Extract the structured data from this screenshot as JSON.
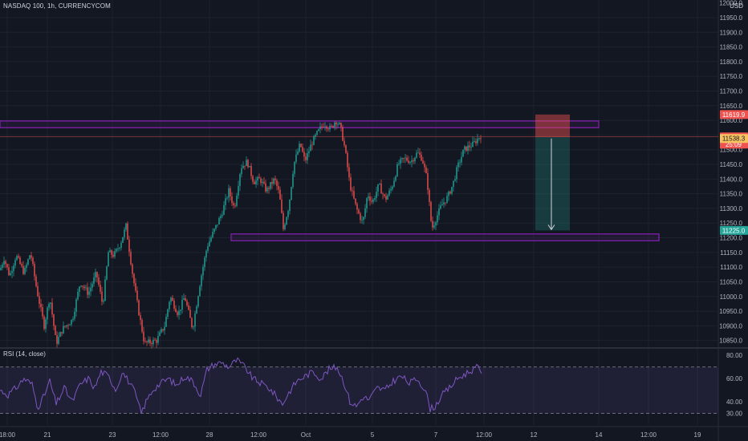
{
  "header": {
    "symbol_title": "NASDAQ 100, 1h, CURRENCYCOM",
    "currency": "USD"
  },
  "rsi": {
    "title": "RSI (14, close)"
  },
  "colors": {
    "background": "#131722",
    "up": "#26a69a",
    "down": "#ef5350",
    "rsi_line": "#7e57c2",
    "zone_border": "#7b1fa2",
    "grid": "#1e222d"
  },
  "chart_data": [
    {
      "type": "candlestick",
      "title": "NASDAQ 100, 1h, CURRENCYCOM",
      "ylim": [
        10830,
        12010
      ],
      "y_ticks": [
        10850,
        10900,
        10950,
        11000,
        11050,
        11100,
        11150,
        11200,
        11250,
        11300,
        11350,
        11400,
        11450,
        11500,
        11550,
        11600,
        11650,
        11700,
        11750,
        11800,
        11850,
        11900,
        11950
      ],
      "y_tick_labels": [
        "10850.0",
        "10900.0",
        "10950.0",
        "11000.0",
        "11050.0",
        "11100.0",
        "11150.0",
        "11200.0",
        "11250.0",
        "11300.0",
        "11350.0",
        "11400.0",
        "11450.0",
        "11500.0",
        "11550.0",
        "11600.0",
        "11650.0",
        "11700.0",
        "11750.0",
        "11800.0",
        "11850.0",
        "11900.0",
        "11950.0"
      ],
      "top_cut_label": "12000.0",
      "x_ticks": [
        "18:00",
        "21",
        "23",
        "12:00",
        "28",
        "12:00",
        "Oct",
        "5",
        "7",
        "12:00",
        "12",
        "14",
        "12:00",
        "19"
      ],
      "price_path": [
        [
          0,
          11090
        ],
        [
          5,
          11130
        ],
        [
          12,
          11070
        ],
        [
          20,
          11140
        ],
        [
          30,
          11080
        ],
        [
          38,
          11150
        ],
        [
          46,
          11020
        ],
        [
          55,
          10900
        ],
        [
          62,
          11000
        ],
        [
          70,
          10840
        ],
        [
          78,
          10890
        ],
        [
          90,
          10920
        ],
        [
          100,
          11050
        ],
        [
          110,
          11010
        ],
        [
          120,
          11080
        ],
        [
          128,
          10970
        ],
        [
          135,
          11150
        ],
        [
          142,
          11140
        ],
        [
          150,
          11180
        ],
        [
          157,
          11240
        ],
        [
          165,
          11080
        ],
        [
          172,
          10960
        ],
        [
          180,
          10840
        ],
        [
          195,
          10850
        ],
        [
          205,
          10900
        ],
        [
          212,
          11000
        ],
        [
          222,
          10940
        ],
        [
          230,
          11000
        ],
        [
          240,
          10890
        ],
        [
          250,
          11060
        ],
        [
          258,
          11170
        ],
        [
          266,
          11220
        ],
        [
          276,
          11280
        ],
        [
          285,
          11360
        ],
        [
          292,
          11300
        ],
        [
          300,
          11440
        ],
        [
          308,
          11460
        ],
        [
          316,
          11390
        ],
        [
          324,
          11400
        ],
        [
          332,
          11360
        ],
        [
          342,
          11400
        ],
        [
          348,
          11350
        ],
        [
          353,
          11230
        ],
        [
          360,
          11310
        ],
        [
          366,
          11450
        ],
        [
          374,
          11520
        ],
        [
          380,
          11460
        ],
        [
          388,
          11520
        ],
        [
          396,
          11560
        ],
        [
          404,
          11590
        ],
        [
          412,
          11570
        ],
        [
          418,
          11600
        ],
        [
          424,
          11580
        ],
        [
          430,
          11500
        ],
        [
          436,
          11380
        ],
        [
          444,
          11300
        ],
        [
          452,
          11250
        ],
        [
          458,
          11350
        ],
        [
          464,
          11320
        ],
        [
          472,
          11380
        ],
        [
          480,
          11330
        ],
        [
          488,
          11370
        ],
        [
          496,
          11450
        ],
        [
          504,
          11470
        ],
        [
          512,
          11460
        ],
        [
          520,
          11490
        ],
        [
          526,
          11470
        ],
        [
          532,
          11400
        ],
        [
          538,
          11230
        ],
        [
          544,
          11270
        ],
        [
          550,
          11310
        ],
        [
          558,
          11340
        ],
        [
          564,
          11380
        ],
        [
          570,
          11440
        ],
        [
          578,
          11500
        ],
        [
          584,
          11510
        ],
        [
          590,
          11520
        ],
        [
          596,
          11540
        ],
        [
          600,
          11550
        ]
      ],
      "zones": [
        {
          "name": "resistance",
          "from": 11575,
          "to": 11598
        },
        {
          "name": "support",
          "from": 11190,
          "to": 11213
        }
      ],
      "position": {
        "type": "short",
        "entry": 11543.7,
        "stop": 11619.9,
        "target": 11225.0
      },
      "price_labels": [
        {
          "text": "11619.9",
          "value": 11619.9,
          "color": "#ef5350"
        },
        {
          "text": "11543.7",
          "value": 11543.7,
          "color": "#ef5350"
        },
        {
          "text": "25:09",
          "value": 11519,
          "color": "#ef5350"
        },
        {
          "text": "11538.3",
          "value": 11538.3,
          "color": "#f7c35f"
        },
        {
          "text": "11225.0",
          "value": 11225.0,
          "color": "#26a69a"
        }
      ]
    },
    {
      "type": "line",
      "title": "RSI (14, close)",
      "ylim": [
        20,
        85
      ],
      "y_ticks": [
        30,
        40,
        60,
        80
      ],
      "y_tick_labels": [
        "30.00",
        "40.00",
        "60.00",
        "80.00"
      ],
      "levels": [
        70,
        30
      ],
      "x_extent": 600,
      "x": [
        0,
        10,
        20,
        30,
        40,
        47,
        55,
        62,
        70,
        80,
        90,
        100,
        110,
        118,
        126,
        135,
        145,
        152,
        160,
        168,
        176,
        182,
        190,
        200,
        210,
        220,
        230,
        240,
        250,
        258,
        266,
        276,
        285,
        295,
        305,
        315,
        325,
        335,
        345,
        352,
        360,
        370,
        380,
        390,
        400,
        410,
        420,
        428,
        436,
        444,
        452,
        460,
        470,
        480,
        490,
        500,
        510,
        520,
        530,
        536,
        542,
        550,
        560,
        570,
        580,
        590,
        596,
        600
      ],
      "y": [
        50,
        46,
        52,
        60,
        55,
        35,
        45,
        58,
        38,
        52,
        40,
        55,
        60,
        52,
        66,
        62,
        50,
        66,
        58,
        48,
        30,
        40,
        50,
        56,
        60,
        54,
        62,
        58,
        46,
        68,
        72,
        74,
        70,
        76,
        70,
        60,
        56,
        52,
        44,
        38,
        48,
        58,
        62,
        66,
        60,
        68,
        70,
        58,
        40,
        36,
        44,
        42,
        52,
        50,
        58,
        62,
        56,
        60,
        50,
        34,
        36,
        45,
        52,
        60,
        64,
        68,
        70,
        66
      ]
    }
  ]
}
